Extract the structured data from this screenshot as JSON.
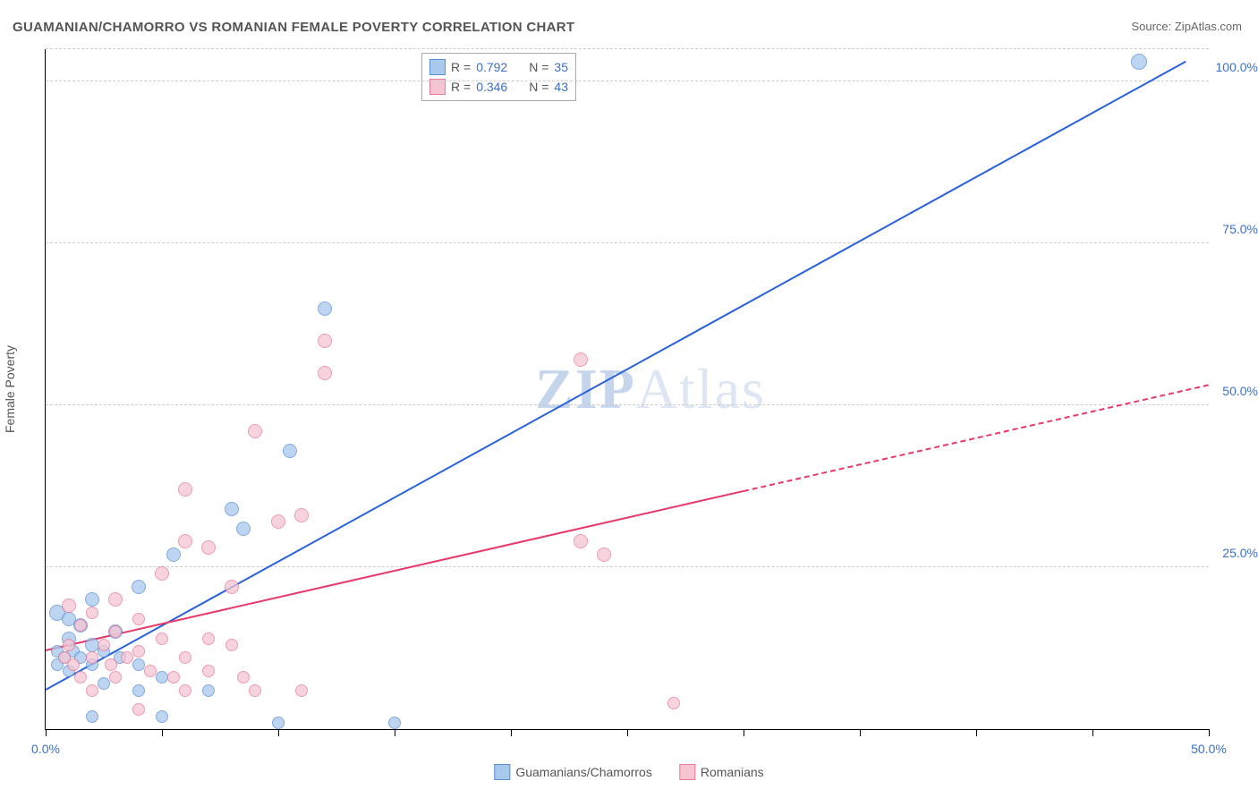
{
  "title": "GUAMANIAN/CHAMORRO VS ROMANIAN FEMALE POVERTY CORRELATION CHART",
  "source_label": "Source: ",
  "source_value": "ZipAtlas.com",
  "y_axis_label": "Female Poverty",
  "watermark": {
    "bold": "ZIP",
    "rest": "Atlas"
  },
  "chart": {
    "type": "scatter",
    "xlim": [
      0,
      50
    ],
    "ylim": [
      0,
      105
    ],
    "x_ticks": [
      0,
      5,
      10,
      15,
      20,
      25,
      30,
      35,
      40,
      45,
      50
    ],
    "x_tick_labels": {
      "0": "0.0%",
      "50": "50.0%"
    },
    "y_gridlines": [
      25,
      50,
      75,
      100,
      105
    ],
    "y_labels_right": [
      {
        "val": 25,
        "label": "25.0%"
      },
      {
        "val": 50,
        "label": "50.0%"
      },
      {
        "val": 75,
        "label": "75.0%"
      },
      {
        "val": 100,
        "label": "100.0%"
      }
    ],
    "background_color": "#ffffff",
    "grid_color": "#cccccc",
    "axis_color": "#000000",
    "label_color": "#3b6fc9",
    "title_color": "#555555",
    "title_fontsize": 15,
    "label_fontsize": 14,
    "series": [
      {
        "name": "Guamanians/Chamorros",
        "marker_fill": "#a8c8ec",
        "marker_stroke": "#5a8fd6",
        "marker_opacity": 0.75,
        "line_color": "#2962d9",
        "line_width": 2.5,
        "R": "0.792",
        "N": "35",
        "trend": {
          "x1": 0,
          "y1": 6,
          "x2": 49,
          "y2": 103,
          "dashed_from_x": null
        },
        "points": [
          {
            "x": 47,
            "y": 103,
            "r": 8
          },
          {
            "x": 12,
            "y": 65,
            "r": 7
          },
          {
            "x": 10.5,
            "y": 43,
            "r": 7
          },
          {
            "x": 8,
            "y": 34,
            "r": 7
          },
          {
            "x": 8.5,
            "y": 31,
            "r": 7
          },
          {
            "x": 5.5,
            "y": 27,
            "r": 7
          },
          {
            "x": 4,
            "y": 22,
            "r": 7
          },
          {
            "x": 2,
            "y": 20,
            "r": 7
          },
          {
            "x": 0.5,
            "y": 18,
            "r": 8
          },
          {
            "x": 1,
            "y": 17,
            "r": 7
          },
          {
            "x": 1.5,
            "y": 16,
            "r": 7
          },
          {
            "x": 3,
            "y": 15,
            "r": 7
          },
          {
            "x": 1,
            "y": 14,
            "r": 7
          },
          {
            "x": 2,
            "y": 13,
            "r": 7
          },
          {
            "x": 0.5,
            "y": 12,
            "r": 6
          },
          {
            "x": 1.2,
            "y": 12,
            "r": 6
          },
          {
            "x": 2.5,
            "y": 12,
            "r": 6
          },
          {
            "x": 0.8,
            "y": 11,
            "r": 6
          },
          {
            "x": 1.5,
            "y": 11,
            "r": 6
          },
          {
            "x": 3.2,
            "y": 11,
            "r": 6
          },
          {
            "x": 0.5,
            "y": 10,
            "r": 6
          },
          {
            "x": 2,
            "y": 10,
            "r": 6
          },
          {
            "x": 4,
            "y": 10,
            "r": 6
          },
          {
            "x": 1,
            "y": 9,
            "r": 6
          },
          {
            "x": 5,
            "y": 8,
            "r": 6
          },
          {
            "x": 2.5,
            "y": 7,
            "r": 6
          },
          {
            "x": 4,
            "y": 6,
            "r": 6
          },
          {
            "x": 7,
            "y": 6,
            "r": 6
          },
          {
            "x": 2,
            "y": 2,
            "r": 6
          },
          {
            "x": 5,
            "y": 2,
            "r": 6
          },
          {
            "x": 10,
            "y": 1,
            "r": 6
          },
          {
            "x": 15,
            "y": 1,
            "r": 6
          }
        ]
      },
      {
        "name": "Romanians",
        "marker_fill": "#f5c6d2",
        "marker_stroke": "#e77a9a",
        "marker_opacity": 0.75,
        "line_color": "#e8396b",
        "line_width": 2.5,
        "R": "0.346",
        "N": "43",
        "trend": {
          "x1": 0,
          "y1": 12,
          "x2": 50,
          "y2": 53,
          "dashed_from_x": 30
        },
        "points": [
          {
            "x": 23,
            "y": 57,
            "r": 7
          },
          {
            "x": 12,
            "y": 60,
            "r": 7
          },
          {
            "x": 12,
            "y": 55,
            "r": 7
          },
          {
            "x": 9,
            "y": 46,
            "r": 7
          },
          {
            "x": 6,
            "y": 37,
            "r": 7
          },
          {
            "x": 10,
            "y": 32,
            "r": 7
          },
          {
            "x": 11,
            "y": 33,
            "r": 7
          },
          {
            "x": 6,
            "y": 29,
            "r": 7
          },
          {
            "x": 7,
            "y": 28,
            "r": 7
          },
          {
            "x": 23,
            "y": 29,
            "r": 7
          },
          {
            "x": 24,
            "y": 27,
            "r": 7
          },
          {
            "x": 5,
            "y": 24,
            "r": 7
          },
          {
            "x": 8,
            "y": 22,
            "r": 7
          },
          {
            "x": 3,
            "y": 20,
            "r": 7
          },
          {
            "x": 1,
            "y": 19,
            "r": 7
          },
          {
            "x": 2,
            "y": 18,
            "r": 6
          },
          {
            "x": 4,
            "y": 17,
            "r": 6
          },
          {
            "x": 1.5,
            "y": 16,
            "r": 6
          },
          {
            "x": 3,
            "y": 15,
            "r": 6
          },
          {
            "x": 5,
            "y": 14,
            "r": 6
          },
          {
            "x": 7,
            "y": 14,
            "r": 6
          },
          {
            "x": 1,
            "y": 13,
            "r": 6
          },
          {
            "x": 2.5,
            "y": 13,
            "r": 6
          },
          {
            "x": 4,
            "y": 12,
            "r": 6
          },
          {
            "x": 8,
            "y": 13,
            "r": 6
          },
          {
            "x": 0.8,
            "y": 11,
            "r": 6
          },
          {
            "x": 2,
            "y": 11,
            "r": 6
          },
          {
            "x": 3.5,
            "y": 11,
            "r": 6
          },
          {
            "x": 6,
            "y": 11,
            "r": 6
          },
          {
            "x": 1.2,
            "y": 10,
            "r": 6
          },
          {
            "x": 2.8,
            "y": 10,
            "r": 6
          },
          {
            "x": 4.5,
            "y": 9,
            "r": 6
          },
          {
            "x": 7,
            "y": 9,
            "r": 6
          },
          {
            "x": 1.5,
            "y": 8,
            "r": 6
          },
          {
            "x": 3,
            "y": 8,
            "r": 6
          },
          {
            "x": 5.5,
            "y": 8,
            "r": 6
          },
          {
            "x": 8.5,
            "y": 8,
            "r": 6
          },
          {
            "x": 2,
            "y": 6,
            "r": 6
          },
          {
            "x": 6,
            "y": 6,
            "r": 6
          },
          {
            "x": 9,
            "y": 6,
            "r": 6
          },
          {
            "x": 11,
            "y": 6,
            "r": 6
          },
          {
            "x": 27,
            "y": 4,
            "r": 6
          },
          {
            "x": 4,
            "y": 3,
            "r": 6
          }
        ]
      }
    ],
    "legend_labels": {
      "R_prefix": "R = ",
      "N_prefix": "N = "
    }
  }
}
